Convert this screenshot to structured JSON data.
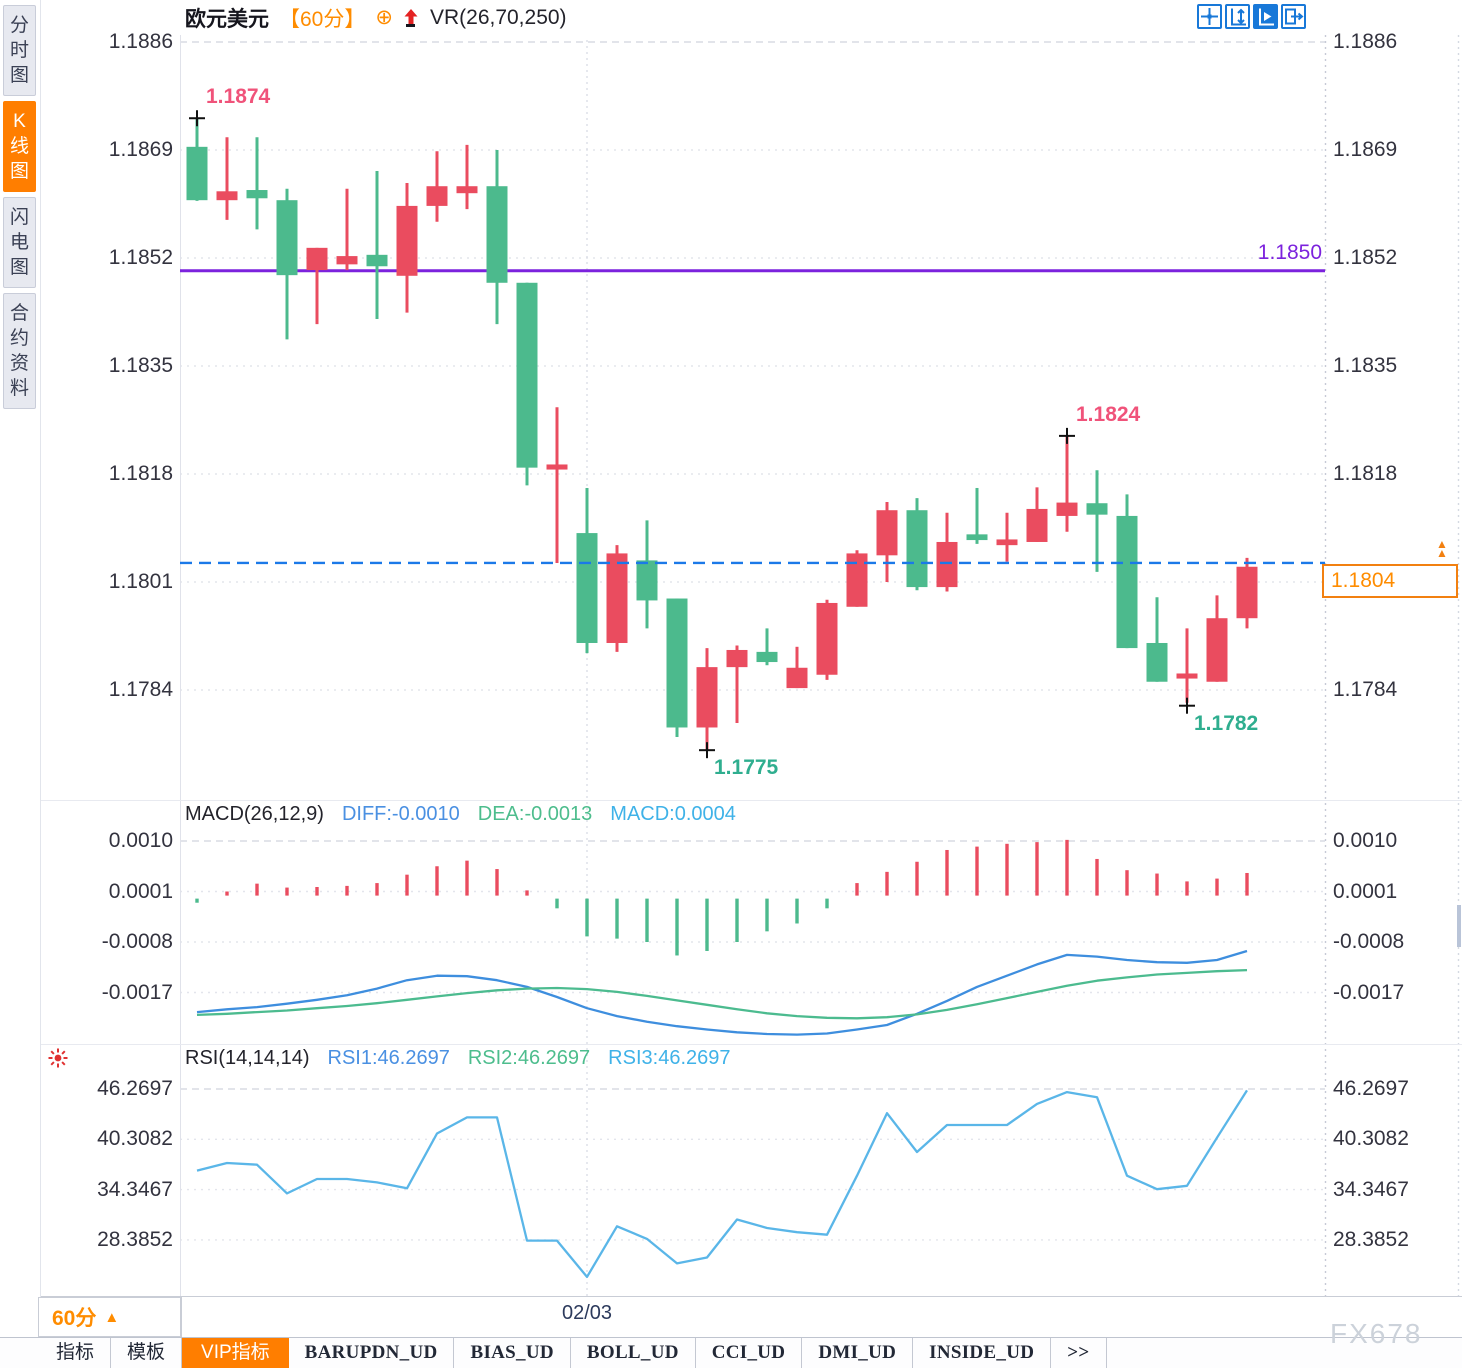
{
  "sidebar": {
    "tabs": [
      {
        "label": "分时图",
        "active": false
      },
      {
        "label": "K线图",
        "active": true
      },
      {
        "label": "闪电图",
        "active": false
      },
      {
        "label": "合约资料",
        "active": false
      }
    ]
  },
  "header": {
    "symbol": "欧元美元",
    "period": "【60分】",
    "scope_icon": "⊕",
    "indicator": "VR(26,70,250)"
  },
  "toolbar": {
    "icons": [
      {
        "name": "crosshair-icon",
        "active": false
      },
      {
        "name": "axis-range-icon",
        "active": false
      },
      {
        "name": "play-axis-icon",
        "active": true
      },
      {
        "name": "panel-shift-icon",
        "active": false
      }
    ]
  },
  "macd_header": {
    "title": "MACD(26,12,9)",
    "diff": "DIFF:-0.0010",
    "dea": "DEA:-0.0013",
    "macd": "MACD:0.0004"
  },
  "rsi_header": {
    "title": "RSI(14,14,14)",
    "rsi1": "RSI1:46.2697",
    "rsi2": "RSI2:46.2697",
    "rsi3": "RSI3:46.2697"
  },
  "footer": {
    "period_label": "60分",
    "period_arrow": "▲",
    "date_label": "02/03",
    "watermark": "FX678"
  },
  "bottom_tabs": [
    {
      "label": "指标",
      "active": false
    },
    {
      "label": "模板",
      "active": false
    },
    {
      "label": "VIP指标",
      "active": true
    },
    {
      "label": "BARUPDN_UD",
      "active": false
    },
    {
      "label": "BIAS_UD",
      "active": false
    },
    {
      "label": "BOLL_UD",
      "active": false
    },
    {
      "label": "CCI_UD",
      "active": false
    },
    {
      "label": "DMI_UD",
      "active": false
    },
    {
      "label": "INSIDE_UD",
      "active": false
    },
    {
      "label": ">>",
      "active": false
    }
  ],
  "chart_data": [
    {
      "type": "candlestick",
      "up_color": "#ea4c5f",
      "down_color": "#4cba8d",
      "y_ticks": [
        {
          "label": "1.1886",
          "value": 1.1886
        },
        {
          "label": "1.1869",
          "value": 1.1869
        },
        {
          "label": "1.1852",
          "value": 1.1852
        },
        {
          "label": "1.1835",
          "value": 1.1835
        },
        {
          "label": "1.1818",
          "value": 1.1818
        },
        {
          "label": "1.1801",
          "value": 1.1801
        },
        {
          "label": "1.1784",
          "value": 1.1784
        }
      ],
      "x_tick": {
        "label": "02/03",
        "candle_index": 13
      },
      "hlines": [
        {
          "label": "1.1850",
          "value": 1.185,
          "style": "solid",
          "color": "#7c22dd"
        },
        {
          "label": "1.1804",
          "value": 1.1804,
          "style": "dashed",
          "color": "#1b79e8"
        }
      ],
      "candles_ohlc": [
        [
          1.18695,
          1.1874,
          1.1861,
          1.18611
        ],
        [
          1.18611,
          1.1871,
          1.1858,
          1.18625
        ],
        [
          1.18627,
          1.1871,
          1.18565,
          1.18614
        ],
        [
          1.18611,
          1.18629,
          1.18392,
          1.18493
        ],
        [
          1.18501,
          1.18536,
          1.18416,
          1.18536
        ],
        [
          1.1851,
          1.18629,
          1.18501,
          1.18523
        ],
        [
          1.18525,
          1.18657,
          1.18424,
          1.18507
        ],
        [
          1.18492,
          1.18638,
          1.18434,
          1.18602
        ],
        [
          1.18602,
          1.18688,
          1.18577,
          1.18633
        ],
        [
          1.18622,
          1.18698,
          1.18597,
          1.18633
        ],
        [
          1.18633,
          1.1869,
          1.18416,
          1.18481
        ],
        [
          1.18481,
          1.18481,
          1.18162,
          1.1819
        ],
        [
          1.18187,
          1.18285,
          1.1804,
          1.18195
        ],
        [
          1.18087,
          1.18158,
          1.17898,
          1.17914
        ],
        [
          1.17914,
          1.18068,
          1.179,
          1.18055
        ],
        [
          1.18044,
          1.18107,
          1.17937,
          1.17981
        ],
        [
          1.17984,
          1.17984,
          1.17766,
          1.17781
        ],
        [
          1.17781,
          1.17906,
          1.17745,
          1.17876
        ],
        [
          1.17876,
          1.1791,
          1.17788,
          1.17903
        ],
        [
          1.179,
          1.17937,
          1.17879,
          1.17884
        ],
        [
          1.17843,
          1.17908,
          1.17843,
          1.17875
        ],
        [
          1.17864,
          1.17982,
          1.17856,
          1.17977
        ],
        [
          1.17971,
          1.1806,
          1.17971,
          1.18055
        ],
        [
          1.18052,
          1.18136,
          1.1801,
          1.18123
        ],
        [
          1.18123,
          1.18142,
          1.17997,
          1.18002
        ],
        [
          1.18002,
          1.18119,
          1.17995,
          1.18073
        ],
        [
          1.18085,
          1.18158,
          1.1807,
          1.18076
        ],
        [
          1.18068,
          1.18119,
          1.18042,
          1.18077
        ],
        [
          1.18073,
          1.18159,
          1.18073,
          1.18125
        ],
        [
          1.18114,
          1.1824,
          1.18089,
          1.18135
        ],
        [
          1.18134,
          1.18186,
          1.18026,
          1.18116
        ],
        [
          1.18114,
          1.18148,
          1.17906,
          1.17906
        ],
        [
          1.17914,
          1.17986,
          1.17853,
          1.17853
        ],
        [
          1.17858,
          1.17937,
          1.1782,
          1.17866
        ],
        [
          1.17853,
          1.17989,
          1.17853,
          1.17953
        ],
        [
          1.17953,
          1.18048,
          1.17937,
          1.18034
        ]
      ],
      "markers": [
        {
          "index": 0,
          "pos": "high",
          "price": 1.1874,
          "label": "1.1874",
          "color": "#f0537a"
        },
        {
          "index": 29,
          "pos": "high",
          "price": 1.1824,
          "label": "1.1824",
          "color": "#f0537a"
        },
        {
          "index": 17,
          "pos": "low",
          "price": 1.1775,
          "label": "1.1775",
          "color": "#2fae8f"
        },
        {
          "index": 33,
          "pos": "low",
          "price": 1.1782,
          "label": "1.1782",
          "color": "#2fae8f"
        }
      ]
    },
    {
      "type": "macd",
      "params": "26,12,9",
      "hist_up_color": "#ea4c5f",
      "hist_down_color": "#4cba8d",
      "diff_color": "#3e8ede",
      "dea_color": "#4cbb8f",
      "y_ticks": [
        {
          "label": "0.0010",
          "value": 0.001
        },
        {
          "label": "0.0001",
          "value": 0.0001
        },
        {
          "label": "-0.0008",
          "value": -0.0008
        },
        {
          "label": "-0.0017",
          "value": -0.0017
        }
      ],
      "histogram": [
        -0.0001,
        0.0001,
        0.00024,
        0.00017,
        0.00018,
        0.0002,
        0.00025,
        0.0004,
        0.00055,
        0.00065,
        0.0005,
        0.00012,
        -0.0002,
        -0.0007,
        -0.00074,
        -0.0008,
        -0.00104,
        -0.00096,
        -0.0008,
        -0.00061,
        -0.00047,
        -0.0002,
        0.00025,
        0.00045,
        0.00063,
        0.00084,
        0.0009,
        0.00095,
        0.00098,
        0.00102,
        0.00068,
        0.00048,
        0.00042,
        0.00028,
        0.00033,
        0.00043
      ],
      "diff": [
        -0.00205,
        -0.002,
        -0.00196,
        -0.0019,
        -0.00183,
        -0.00175,
        -0.00163,
        -0.00148,
        -0.0014,
        -0.00141,
        -0.00148,
        -0.0016,
        -0.00178,
        -0.00198,
        -0.00212,
        -0.00222,
        -0.0023,
        -0.00236,
        -0.00241,
        -0.00244,
        -0.00245,
        -0.00243,
        -0.00236,
        -0.00228,
        -0.00208,
        -0.00185,
        -0.0016,
        -0.0014,
        -0.0012,
        -0.00103,
        -0.00106,
        -0.00112,
        -0.00116,
        -0.00117,
        -0.00112,
        -0.00096
      ],
      "dea": [
        -0.0021,
        -0.00208,
        -0.00205,
        -0.00202,
        -0.00198,
        -0.00194,
        -0.00189,
        -0.00183,
        -0.00177,
        -0.00171,
        -0.00166,
        -0.00163,
        -0.00162,
        -0.00164,
        -0.00169,
        -0.00176,
        -0.00184,
        -0.00192,
        -0.002,
        -0.00207,
        -0.00212,
        -0.00215,
        -0.00216,
        -0.00214,
        -0.00209,
        -0.00201,
        -0.00191,
        -0.0018,
        -0.00169,
        -0.00158,
        -0.00149,
        -0.00143,
        -0.00138,
        -0.00135,
        -0.00132,
        -0.0013
      ]
    },
    {
      "type": "line",
      "name": "RSI",
      "color": "#5ab6e8",
      "y_ticks": [
        {
          "label": "46.2697",
          "value": 46.2697
        },
        {
          "label": "40.3082",
          "value": 40.3082
        },
        {
          "label": "34.3467",
          "value": 34.3467
        },
        {
          "label": "28.3852",
          "value": 28.3852
        }
      ],
      "values": [
        36.6,
        37.5,
        37.3,
        33.9,
        35.6,
        35.6,
        35.2,
        34.5,
        41.0,
        42.9,
        42.9,
        28.3,
        28.3,
        24.0,
        30.0,
        28.5,
        25.6,
        26.3,
        30.8,
        29.8,
        29.3,
        29.0,
        36.0,
        43.4,
        38.8,
        42.0,
        42.0,
        42.0,
        44.5,
        45.9,
        45.3,
        36.0,
        34.4,
        34.8,
        40.5,
        46.1
      ]
    }
  ]
}
